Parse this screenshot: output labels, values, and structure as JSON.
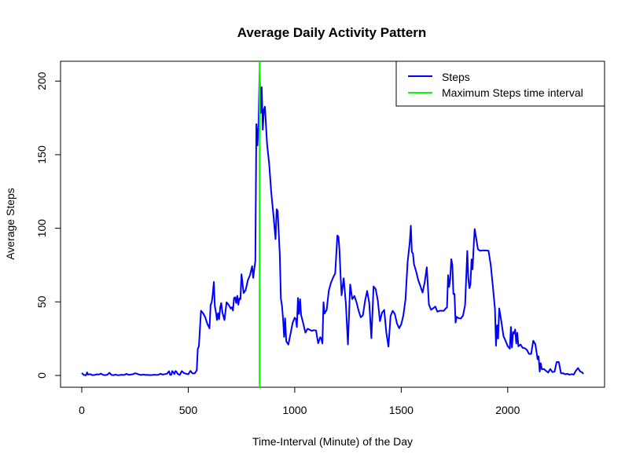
{
  "chart_data": {
    "type": "line",
    "title": "Average Daily Activity Pattern",
    "xlabel": "Time-Interval (Minute) of the Day",
    "ylabel": "Average Steps",
    "xlim": [
      0,
      2355
    ],
    "ylim": [
      0,
      206
    ],
    "xticks": [
      0,
      500,
      1000,
      1500,
      2000
    ],
    "yticks": [
      0,
      50,
      100,
      150,
      200
    ],
    "grid": false,
    "legend_position": "top-right",
    "series": [
      {
        "name": "Steps",
        "color": "#0000ff",
        "x": [
          0,
          10,
          20,
          25,
          30,
          40,
          50,
          60,
          70,
          80,
          90,
          100,
          110,
          120,
          130,
          140,
          150,
          160,
          170,
          180,
          190,
          200,
          210,
          220,
          230,
          240,
          250,
          260,
          270,
          280,
          290,
          300,
          310,
          320,
          330,
          340,
          350,
          360,
          370,
          380,
          390,
          400,
          410,
          415,
          420,
          425,
          430,
          435,
          440,
          445,
          450,
          460,
          470,
          480,
          490,
          500,
          510,
          520,
          530,
          540,
          545,
          550,
          560,
          570,
          580,
          590,
          600,
          605,
          610,
          615,
          620,
          625,
          630,
          635,
          640,
          645,
          650,
          655,
          660,
          670,
          680,
          690,
          700,
          705,
          710,
          715,
          720,
          725,
          730,
          735,
          740,
          745,
          750,
          760,
          770,
          780,
          790,
          800,
          805,
          810,
          815,
          820,
          825,
          830,
          835,
          840,
          845,
          850,
          855,
          860,
          870,
          880,
          890,
          900,
          910,
          915,
          920,
          925,
          930,
          935,
          940,
          945,
          950,
          955,
          960,
          970,
          980,
          990,
          1000,
          1005,
          1010,
          1015,
          1020,
          1025,
          1030,
          1040,
          1050,
          1060,
          1070,
          1080,
          1090,
          1100,
          1110,
          1120,
          1125,
          1130,
          1135,
          1140,
          1145,
          1150,
          1160,
          1170,
          1180,
          1190,
          1200,
          1205,
          1210,
          1215,
          1220,
          1230,
          1240,
          1250,
          1260,
          1270,
          1280,
          1290,
          1300,
          1310,
          1320,
          1330,
          1340,
          1350,
          1360,
          1370,
          1380,
          1390,
          1400,
          1410,
          1420,
          1430,
          1440,
          1450,
          1460,
          1470,
          1480,
          1490,
          1500,
          1510,
          1520,
          1530,
          1540,
          1545,
          1550,
          1555,
          1560,
          1570,
          1580,
          1590,
          1600,
          1610,
          1620,
          1630,
          1640,
          1650,
          1660,
          1670,
          1680,
          1690,
          1700,
          1710,
          1715,
          1720,
          1725,
          1730,
          1735,
          1740,
          1745,
          1750,
          1755,
          1760,
          1770,
          1780,
          1790,
          1800,
          1810,
          1815,
          1820,
          1825,
          1830,
          1835,
          1840,
          1845,
          1850,
          1860,
          1870,
          1880,
          1890,
          1900,
          1910,
          1920,
          1930,
          1940,
          1945,
          1950,
          1955,
          1960,
          1970,
          1980,
          1990,
          2000,
          2010,
          2015,
          2020,
          2025,
          2030,
          2035,
          2040,
          2045,
          2050,
          2060,
          2070,
          2080,
          2090,
          2100,
          2110,
          2120,
          2130,
          2140,
          2145,
          2150,
          2155,
          2160,
          2170,
          2180,
          2190,
          2200,
          2210,
          2220,
          2230,
          2240,
          2250,
          2260,
          2270,
          2280,
          2290,
          2300,
          2310,
          2320,
          2330,
          2340,
          2350,
          2355
        ],
        "y": [
          1.7,
          0.3,
          0.1,
          2.1,
          0.6,
          0.9,
          0.2,
          0.3,
          0.8,
          0.6,
          1.3,
          0.4,
          0.2,
          0.5,
          1.8,
          0.3,
          0.2,
          0.6,
          0.1,
          0.3,
          0.5,
          0.3,
          1.1,
          0.4,
          0.6,
          0.8,
          1.5,
          1.2,
          0.6,
          0.3,
          0.6,
          0.3,
          0.4,
          0.2,
          0.3,
          0.5,
          0.3,
          0.5,
          1.2,
          0.6,
          0.9,
          1.2,
          2.9,
          0.5,
          0.4,
          3.0,
          2.1,
          0.9,
          3.0,
          2.5,
          1.1,
          0.3,
          3.0,
          1.6,
          1.2,
          0.8,
          3.1,
          1.4,
          1.4,
          3.5,
          18.2,
          19.8,
          44.0,
          42.2,
          39.5,
          35.0,
          32.0,
          48.0,
          49.6,
          55.0,
          63.5,
          46.9,
          42.9,
          37.6,
          42.3,
          38.2,
          46.1,
          49.2,
          43.1,
          37.6,
          49.7,
          48.0,
          45.4,
          46.3,
          44.1,
          52.6,
          53.1,
          49.2,
          54.1,
          48.1,
          52.4,
          51.7,
          68.8,
          56.0,
          58.2,
          64.8,
          68.1,
          74.3,
          66.3,
          72.2,
          77.8,
          170.8,
          156.3,
          172.0,
          206.0,
          178.4,
          195.8,
          167.0,
          180.5,
          182.6,
          157.3,
          143.6,
          124.0,
          109.1,
          92.7,
          112.9,
          111.8,
          96.4,
          82.1,
          52.1,
          47.3,
          38.9,
          26.2,
          38.8,
          23.2,
          21.0,
          28.1,
          35.6,
          39.3,
          38.4,
          32.9,
          52.7,
          41.8,
          51.8,
          41.1,
          35.4,
          29.1,
          31.7,
          31.1,
          30.3,
          30.8,
          30.5,
          21.9,
          26.0,
          24.8,
          21.7,
          49.8,
          42.0,
          43.4,
          44.5,
          57.8,
          63.0,
          66.5,
          69.5,
          95.1,
          94.3,
          85.3,
          68.1,
          54.5,
          66.0,
          49.0,
          21.1,
          61.8,
          51.9,
          54.0,
          49.7,
          43.9,
          39.5,
          40.8,
          50.5,
          57.4,
          49.3,
          25.3,
          60.5,
          58.6,
          50.8,
          36.9,
          42.7,
          44.5,
          29.3,
          19.6,
          40.4,
          43.9,
          41.8,
          35.3,
          32.1,
          34.8,
          40.9,
          51.7,
          77.2,
          90.4,
          101.7,
          84.0,
          82.8,
          75.6,
          70.7,
          64.8,
          60.6,
          56.3,
          63.3,
          73.5,
          48.1,
          44.6,
          45.7,
          46.8,
          43.3,
          44.0,
          44.0,
          44.0,
          45.8,
          46.2,
          68.2,
          60.2,
          65.6,
          79.0,
          75.3,
          55.3,
          55.5,
          35.9,
          39.8,
          38.9,
          38.7,
          40.6,
          47.8,
          84.6,
          65.9,
          59.3,
          61.9,
          78.9,
          72.1,
          87.6,
          99.5,
          94.9,
          85.8,
          84.7,
          84.9,
          85.0,
          84.9,
          84.7,
          75.2,
          60.6,
          45.3,
          20.2,
          34.1,
          25.1,
          45.6,
          36.7,
          26.8,
          23.5,
          19.9,
          18.2,
          33.0,
          19.0,
          29.4,
          28.5,
          31.3,
          21.7,
          29.0,
          19.8,
          21.1,
          18.8,
          18.5,
          17.4,
          14.7,
          14.6,
          23.6,
          21.2,
          11.0,
          13.0,
          2.6,
          8.3,
          4.2,
          4.4,
          3.1,
          2.0,
          4.4,
          2.3,
          2.6,
          9.1,
          9.1,
          1.5,
          1.5,
          0.8,
          1.1,
          0.5,
          0.9,
          0.6,
          3.2,
          5.0,
          2.8,
          2.1,
          1.0
        ]
      },
      {
        "name": "Maximum Steps time interval",
        "color": "#00ff00",
        "type": "vline",
        "x": 835
      }
    ]
  }
}
